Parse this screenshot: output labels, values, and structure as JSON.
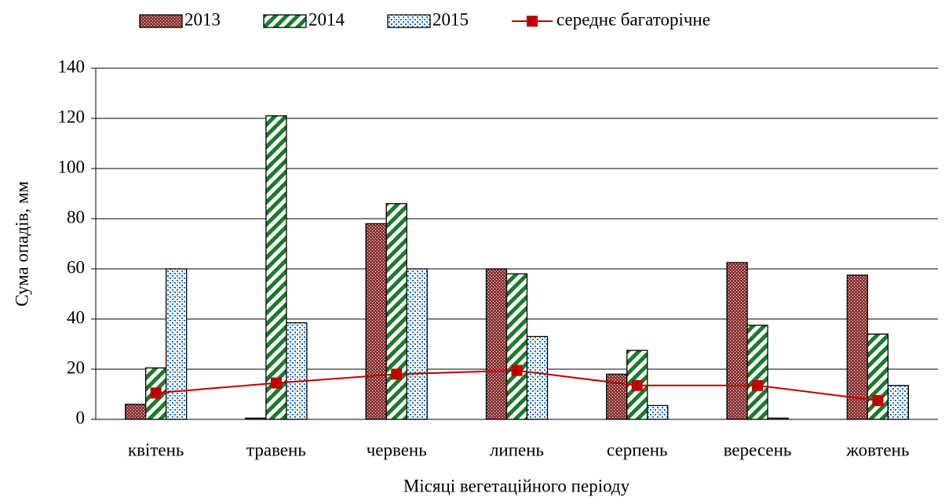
{
  "chart_data": {
    "type": "bar",
    "x_label": "Місяці вегетаційного періоду",
    "y_label": "Сума опадів, мм",
    "categories": [
      "квітень",
      "травень",
      "червень",
      "липень",
      "серпень",
      "вересень",
      "жовтень"
    ],
    "series": [
      {
        "name": "2013",
        "color": "#8b3535",
        "values": [
          6,
          0.5,
          78,
          60,
          18,
          62.5,
          57.5
        ]
      },
      {
        "name": "2014",
        "color": "#1b7a2b",
        "values": [
          20.5,
          121,
          86,
          58,
          27.5,
          37.5,
          34
        ]
      },
      {
        "name": "2015",
        "color": "#1f6fc4",
        "values": [
          60,
          38.5,
          60,
          33,
          5.5,
          0.5,
          13.5
        ]
      },
      {
        "name": "середнє багаторічне",
        "type": "line",
        "color": "#c00000",
        "values": [
          10.5,
          14.5,
          18,
          19.5,
          13.5,
          13.5,
          7.5
        ]
      }
    ],
    "ylim": [
      0,
      140
    ],
    "yticks": [
      0,
      20,
      40,
      60,
      80,
      100,
      120,
      140
    ],
    "grid": true,
    "legend": "top"
  }
}
